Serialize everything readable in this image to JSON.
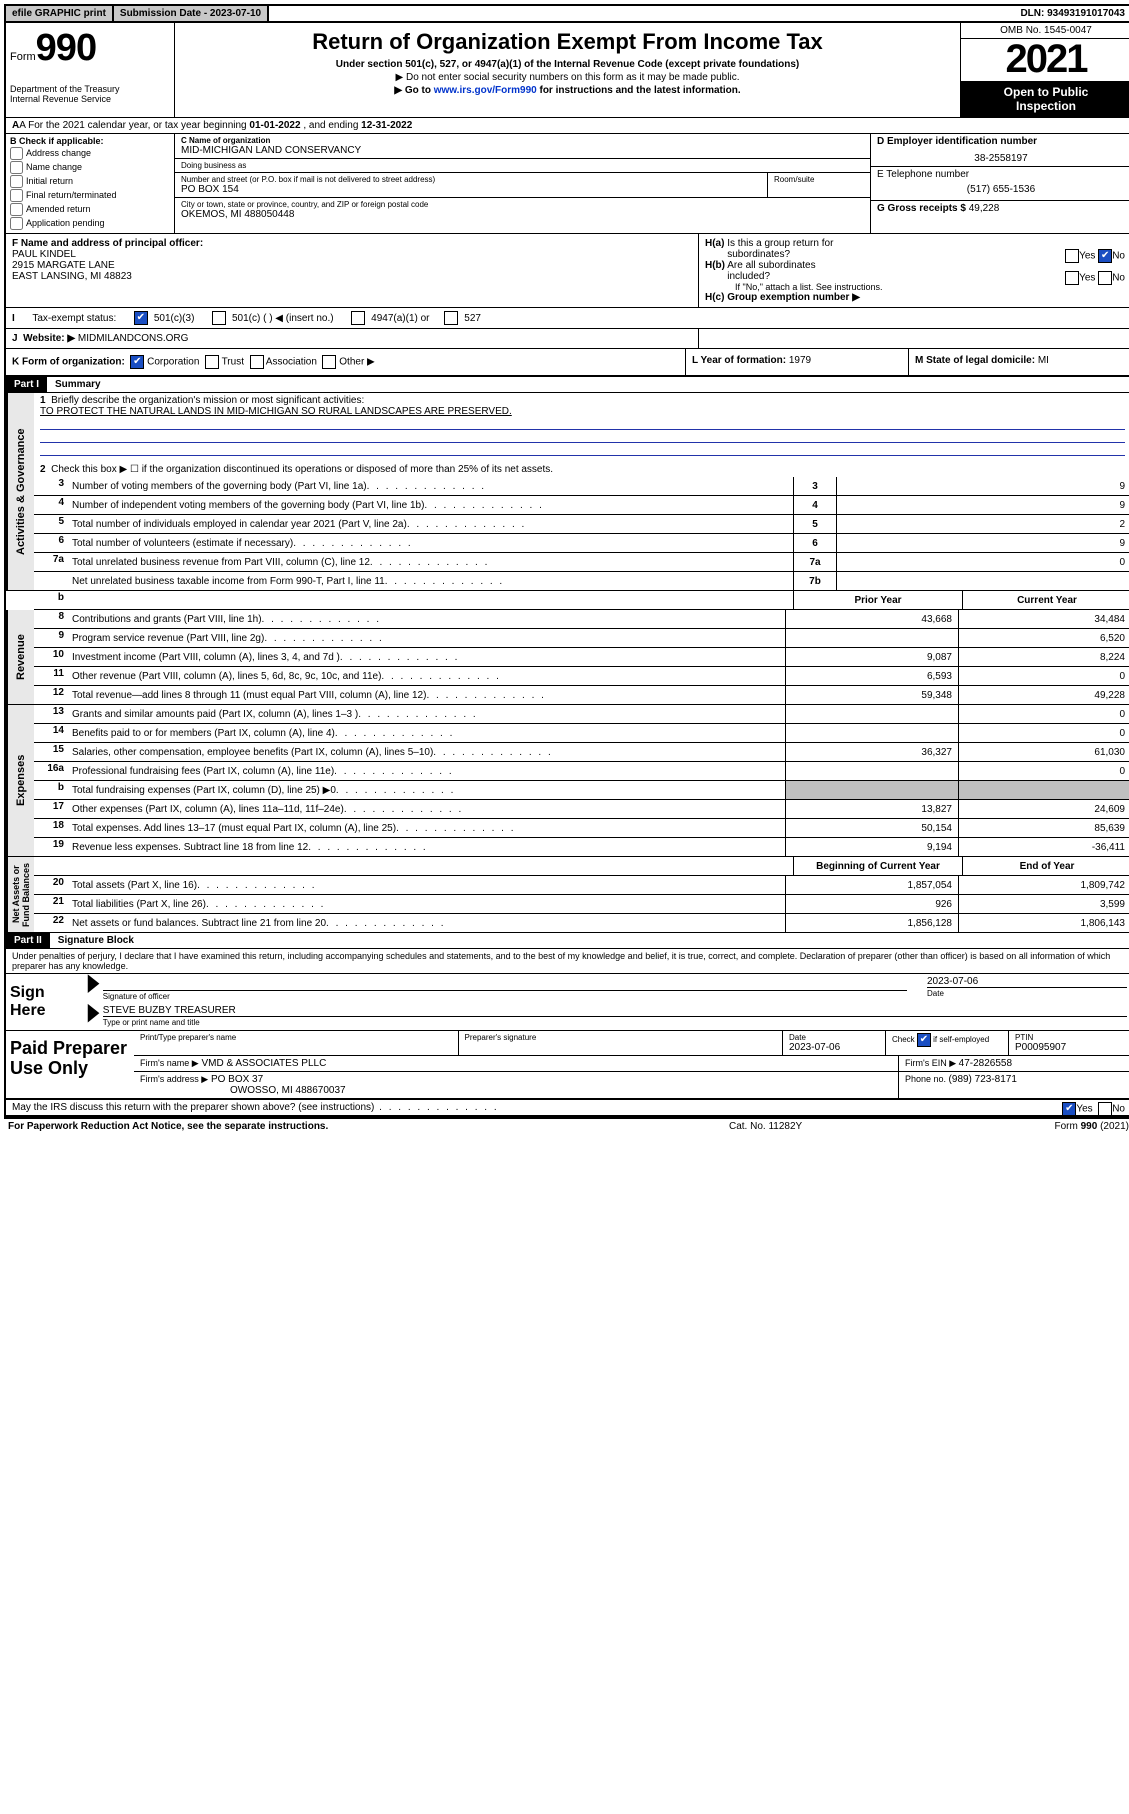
{
  "topbar": {
    "efile": "efile GRAPHIC print",
    "subdate_label": "Submission Date - ",
    "subdate": "2023-07-10",
    "dln_label": "DLN: ",
    "dln": "93493191017043"
  },
  "header": {
    "form_word": "Form",
    "form_num": "990",
    "dept": "Department of the Treasury\nInternal Revenue Service",
    "title": "Return of Organization Exempt From Income Tax",
    "sub1": "Under section 501(c), 527, or 4947(a)(1) of the Internal Revenue Code (except private foundations)",
    "sub2": "▶ Do not enter social security numbers on this form as it may be made public.",
    "sub3_pre": "▶ Go to ",
    "sub3_link": "www.irs.gov/Form990",
    "sub3_post": " for instructions and the latest information.",
    "omb": "OMB No. 1545-0047",
    "year": "2021",
    "inspect": "Open to Public\nInspection"
  },
  "rowA": {
    "text_pre": "A For the 2021 calendar year, or tax year beginning ",
    "begin": "01-01-2022",
    "mid": "   , and ending ",
    "end": "12-31-2022"
  },
  "sectionB": {
    "title": "B Check if applicable:",
    "opts": [
      "Address change",
      "Name change",
      "Initial return",
      "Final return/terminated",
      "Amended return",
      "Application pending"
    ]
  },
  "sectionC": {
    "name_label": "C Name of organization",
    "name": "MID-MICHIGAN LAND CONSERVANCY",
    "dba_label": "Doing business as",
    "dba": "",
    "addr_label": "Number and street (or P.O. box if mail is not delivered to street address)",
    "room_label": "Room/suite",
    "addr": "PO BOX 154",
    "city_label": "City or town, state or province, country, and ZIP or foreign postal code",
    "city": "OKEMOS, MI  488050448"
  },
  "sectionD": {
    "ein_label": "D Employer identification number",
    "ein": "38-2558197",
    "phone_label": "E Telephone number",
    "phone": "(517) 655-1536",
    "gross_label": "G Gross receipts $ ",
    "gross": "49,228"
  },
  "sectionF": {
    "label": "F Name and address of principal officer:",
    "name": "PAUL KINDEL",
    "addr1": "2915 MARGATE LANE",
    "addr2": "EAST LANSING, MI  48823"
  },
  "sectionH": {
    "ha": "H(a)  Is this a group return for subordinates?",
    "ha_no": true,
    "hb": "H(b)  Are all subordinates included?",
    "hb_note": "If \"No,\" attach a list. See instructions.",
    "hc": "H(c)  Group exemption number ▶"
  },
  "rowI": {
    "label": "Tax-exempt status:",
    "opts": [
      "501(c)(3)",
      "501(c) (  ) ◀ (insert no.)",
      "4947(a)(1) or",
      "527"
    ],
    "checked": 0
  },
  "rowJ": {
    "label": "Website: ▶",
    "value": "MIDMILANDCONS.ORG"
  },
  "rowK": {
    "label": "K Form of organization:",
    "opts": [
      "Corporation",
      "Trust",
      "Association",
      "Other ▶"
    ],
    "checked": 0,
    "year_label": "L Year of formation: ",
    "year": "1979",
    "domicile_label": "M State of legal domicile: ",
    "domicile": "MI"
  },
  "partI": {
    "hdr": "Part I",
    "title": "Summary",
    "q1_label": "Briefly describe the organization's mission or most significant activities:",
    "q1_text": "TO PROTECT THE NATURAL LANDS IN MID-MICHIGAN SO RURAL LANDSCAPES ARE PRESERVED.",
    "q2": "Check this box ▶ ☐  if the organization discontinued its operations or disposed of more than 25% of its net assets."
  },
  "governance": {
    "label": "Activities & Governance",
    "rows": [
      {
        "n": "3",
        "d": "Number of voting members of the governing body (Part VI, line 1a)",
        "k": "3",
        "v": "9"
      },
      {
        "n": "4",
        "d": "Number of independent voting members of the governing body (Part VI, line 1b)",
        "k": "4",
        "v": "9"
      },
      {
        "n": "5",
        "d": "Total number of individuals employed in calendar year 2021 (Part V, line 2a)",
        "k": "5",
        "v": "2"
      },
      {
        "n": "6",
        "d": "Total number of volunteers (estimate if necessary)",
        "k": "6",
        "v": "9"
      },
      {
        "n": "7a",
        "d": "Total unrelated business revenue from Part VIII, column (C), line 12",
        "k": "7a",
        "v": "0"
      },
      {
        "n": "",
        "d": "Net unrelated business taxable income from Form 990-T, Part I, line 11",
        "k": "7b",
        "v": ""
      }
    ]
  },
  "colheaders": {
    "b": "b",
    "prior": "Prior Year",
    "current": "Current Year"
  },
  "revenue": {
    "label": "Revenue",
    "rows": [
      {
        "n": "8",
        "d": "Contributions and grants (Part VIII, line 1h)",
        "p": "43,668",
        "c": "34,484"
      },
      {
        "n": "9",
        "d": "Program service revenue (Part VIII, line 2g)",
        "p": "",
        "c": "6,520"
      },
      {
        "n": "10",
        "d": "Investment income (Part VIII, column (A), lines 3, 4, and 7d )",
        "p": "9,087",
        "c": "8,224"
      },
      {
        "n": "11",
        "d": "Other revenue (Part VIII, column (A), lines 5, 6d, 8c, 9c, 10c, and 11e)",
        "p": "6,593",
        "c": "0"
      },
      {
        "n": "12",
        "d": "Total revenue—add lines 8 through 11 (must equal Part VIII, column (A), line 12)",
        "p": "59,348",
        "c": "49,228"
      }
    ]
  },
  "expenses": {
    "label": "Expenses",
    "rows": [
      {
        "n": "13",
        "d": "Grants and similar amounts paid (Part IX, column (A), lines 1–3 )",
        "p": "",
        "c": "0"
      },
      {
        "n": "14",
        "d": "Benefits paid to or for members (Part IX, column (A), line 4)",
        "p": "",
        "c": "0"
      },
      {
        "n": "15",
        "d": "Salaries, other compensation, employee benefits (Part IX, column (A), lines 5–10)",
        "p": "36,327",
        "c": "61,030"
      },
      {
        "n": "16a",
        "d": "Professional fundraising fees (Part IX, column (A), line 11e)",
        "p": "",
        "c": "0"
      },
      {
        "n": "b",
        "d": "Total fundraising expenses (Part IX, column (D), line 25) ▶0",
        "p": "grey",
        "c": "grey"
      },
      {
        "n": "17",
        "d": "Other expenses (Part IX, column (A), lines 11a–11d, 11f–24e)",
        "p": "13,827",
        "c": "24,609"
      },
      {
        "n": "18",
        "d": "Total expenses. Add lines 13–17 (must equal Part IX, column (A), line 25)",
        "p": "50,154",
        "c": "85,639"
      },
      {
        "n": "19",
        "d": "Revenue less expenses. Subtract line 18 from line 12",
        "p": "9,194",
        "c": "-36,411"
      }
    ]
  },
  "netassets": {
    "label": "Net Assets or\nFund Balances",
    "hdr_begin": "Beginning of Current Year",
    "hdr_end": "End of Year",
    "rows": [
      {
        "n": "20",
        "d": "Total assets (Part X, line 16)",
        "p": "1,857,054",
        "c": "1,809,742"
      },
      {
        "n": "21",
        "d": "Total liabilities (Part X, line 26)",
        "p": "926",
        "c": "3,599"
      },
      {
        "n": "22",
        "d": "Net assets or fund balances. Subtract line 21 from line 20",
        "p": "1,856,128",
        "c": "1,806,143"
      }
    ]
  },
  "partII": {
    "hdr": "Part II",
    "title": "Signature Block",
    "decl": "Under penalties of perjury, I declare that I have examined this return, including accompanying schedules and statements, and to the best of my knowledge and belief, it is true, correct, and complete. Declaration of preparer (other than officer) is based on all information of which preparer has any knowledge."
  },
  "sign": {
    "label": "Sign Here",
    "sig_label": "Signature of officer",
    "date_label": "Date",
    "date": "2023-07-06",
    "name": "STEVE BUZBY TREASURER",
    "name_label": "Type or print name and title"
  },
  "paid": {
    "label": "Paid Preparer Use Only",
    "h1": "Print/Type preparer's name",
    "h2": "Preparer's signature",
    "h3": "Date",
    "date": "2023-07-06",
    "h4_pre": "Check",
    "h4_post": "if self-employed",
    "h5": "PTIN",
    "ptin": "P00095907",
    "firm_name_l": "Firm's name    ▶",
    "firm_name": "VMD & ASSOCIATES PLLC",
    "firm_ein_l": "Firm's EIN ▶ ",
    "firm_ein": "47-2826558",
    "firm_addr_l": "Firm's address ▶",
    "firm_addr1": "PO BOX 37",
    "firm_addr2": "OWOSSO, MI  488670037",
    "phone_l": "Phone no. ",
    "phone": "(989) 723-8171"
  },
  "discuss": {
    "q": "May the IRS discuss this return with the preparer shown above? (see instructions)",
    "yes": true
  },
  "footer": {
    "l": "For Paperwork Reduction Act Notice, see the separate instructions.",
    "m": "Cat. No. 11282Y",
    "r": "Form 990 (2021)"
  },
  "colors": {
    "link": "#0033cc",
    "checkbg": "#1a4ec2",
    "grey": "#bfbfbf",
    "vlabel_bg": "#e8e8e8"
  }
}
